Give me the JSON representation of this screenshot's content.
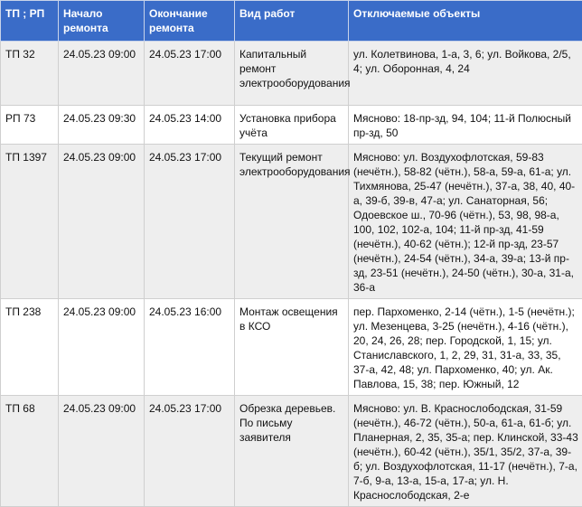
{
  "header": {
    "col1": "ТП ; РП",
    "col2": "Начало ремонта",
    "col3": "Окончание ремонта",
    "col4": "Вид работ",
    "col5": "Отключаемые объекты"
  },
  "header_color": "#3a6cc8",
  "rows": [
    {
      "station": "ТП 32",
      "start": "24.05.23 09:00",
      "end": "24.05.23 17:00",
      "work": "Капитальный ремонт электрооборудования",
      "objects": "ул. Колетвинова, 1-а, 3, 6; ул. Войкова, 2/5, 4; ул. Оборонная, 4, 24"
    },
    {
      "station": "РП 73",
      "start": "24.05.23 09:30",
      "end": "24.05.23 14:00",
      "work": "Установка прибора учёта",
      "objects": "Мясново: 18-пр-зд, 94, 104; 11-й Полюсный пр-зд, 50"
    },
    {
      "station": "ТП 1397",
      "start": "24.05.23 09:00",
      "end": "24.05.23 17:00",
      "work": "Текущий ремонт электрооборудования",
      "objects": "Мясново: ул. Воздухофлотская, 59-83 (нечётн.), 58-82 (чётн.), 58-а, 59-а, 61-а; ул. Тихмянова, 25-47 (нечётн.), 37-а, 38, 40, 40-а, 39-б, 39-в, 47-а; ул. Санаторная, 56; Одоевское ш., 70-96 (чётн.), 53, 98, 98-а, 100, 102, 102-а, 104; 11-й пр-зд, 41-59 (нечётн.), 40-62 (чётн.); 12-й пр-зд, 23-57 (нечётн.), 24-54 (чётн.), 34-а, 39-а; 13-й пр-зд, 23-51 (нечётн.), 24-50 (чётн.), 30-а, 31-а, 36-а"
    },
    {
      "station": "ТП 238",
      "start": "24.05.23 09:00",
      "end": "24.05.23 16:00",
      "work": "Монтаж освещения в КСО",
      "objects": "пер. Пархоменко, 2-14 (чётн.), 1-5 (нечётн.); ул. Мезенцева, 3-25 (нечётн.), 4-16 (чётн.), 20, 24, 26, 28; пер. Городской, 1, 15; ул. Станиславского, 1, 2, 29, 31, 31-а, 33, 35, 37-а, 42, 48; ул. Пархоменко, 40; ул. Ак. Павлова, 15, 38; пер. Южный, 12"
    },
    {
      "station": "ТП 68",
      "start": "24.05.23 09:00",
      "end": "24.05.23 17:00",
      "work": "Обрезка деревьев. По письму заявителя",
      "objects": "Мясново: ул. В. Краснослободская, 31-59 (нечётн.), 46-72 (чётн.), 50-а, 61-а, 61-б; ул. Планерная, 2, 35, 35-а; пер. Клинской, 33-43 (нечётн.), 60-42 (чётн.), 35/1, 35/2, 37-а, 39-б; ул. Воздухофлотская, 11-17 (нечётн.), 7-а, 7-б, 9-а, 13-а, 15-а, 17-а; ул. Н. Краснослободская, 2-е"
    }
  ]
}
